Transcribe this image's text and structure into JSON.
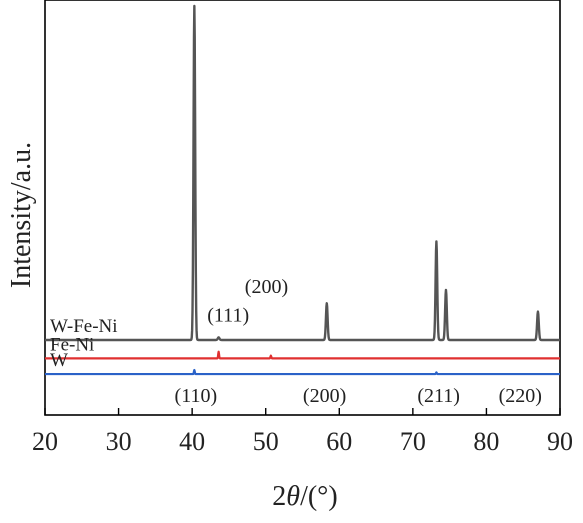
{
  "chart_data": {
    "type": "line",
    "xlabel_prefix": "2",
    "xlabel_var": "θ",
    "xlabel_suffix": "/(°)",
    "ylabel": "Intensity/a.u.",
    "xlim": [
      20,
      90
    ],
    "ylim": [
      -0.12,
      1.0
    ],
    "xticks": [
      "20",
      "30",
      "40",
      "50",
      "60",
      "70",
      "80",
      "90"
    ],
    "grid": false,
    "series": [
      {
        "name": "W-Fe-Ni",
        "color": "#555555",
        "baseline": 0.0,
        "peaks": [
          {
            "x": 40.3,
            "y": 1.0
          },
          {
            "x": 43.6,
            "y": 0.008
          },
          {
            "x": 58.3,
            "y": 0.11
          },
          {
            "x": 73.2,
            "y": 0.295
          },
          {
            "x": 74.5,
            "y": 0.15
          },
          {
            "x": 87.0,
            "y": 0.085
          }
        ]
      },
      {
        "name": "Fe-Ni",
        "color": "#e03030",
        "baseline": -0.055,
        "peaks": [
          {
            "x": 43.6,
            "y": -0.035
          },
          {
            "x": 50.7,
            "y": -0.047
          }
        ]
      },
      {
        "name": "W",
        "color": "#2a62c8",
        "baseline": -0.102,
        "peaks": [
          {
            "x": 40.3,
            "y": -0.09
          },
          {
            "x": 73.2,
            "y": -0.097
          }
        ]
      }
    ],
    "annotations": [
      {
        "text": "(111)",
        "x": 44.9,
        "y": 0.055
      },
      {
        "text": "(200)",
        "x": 50.1,
        "y": 0.14
      },
      {
        "text": "(110)",
        "x": 40.5,
        "y": -0.185
      },
      {
        "text": "(200)",
        "x": 58.0,
        "y": -0.185
      },
      {
        "text": "(211)",
        "x": 73.5,
        "y": -0.185
      },
      {
        "text": "(220)",
        "x": 84.6,
        "y": -0.185
      }
    ]
  }
}
